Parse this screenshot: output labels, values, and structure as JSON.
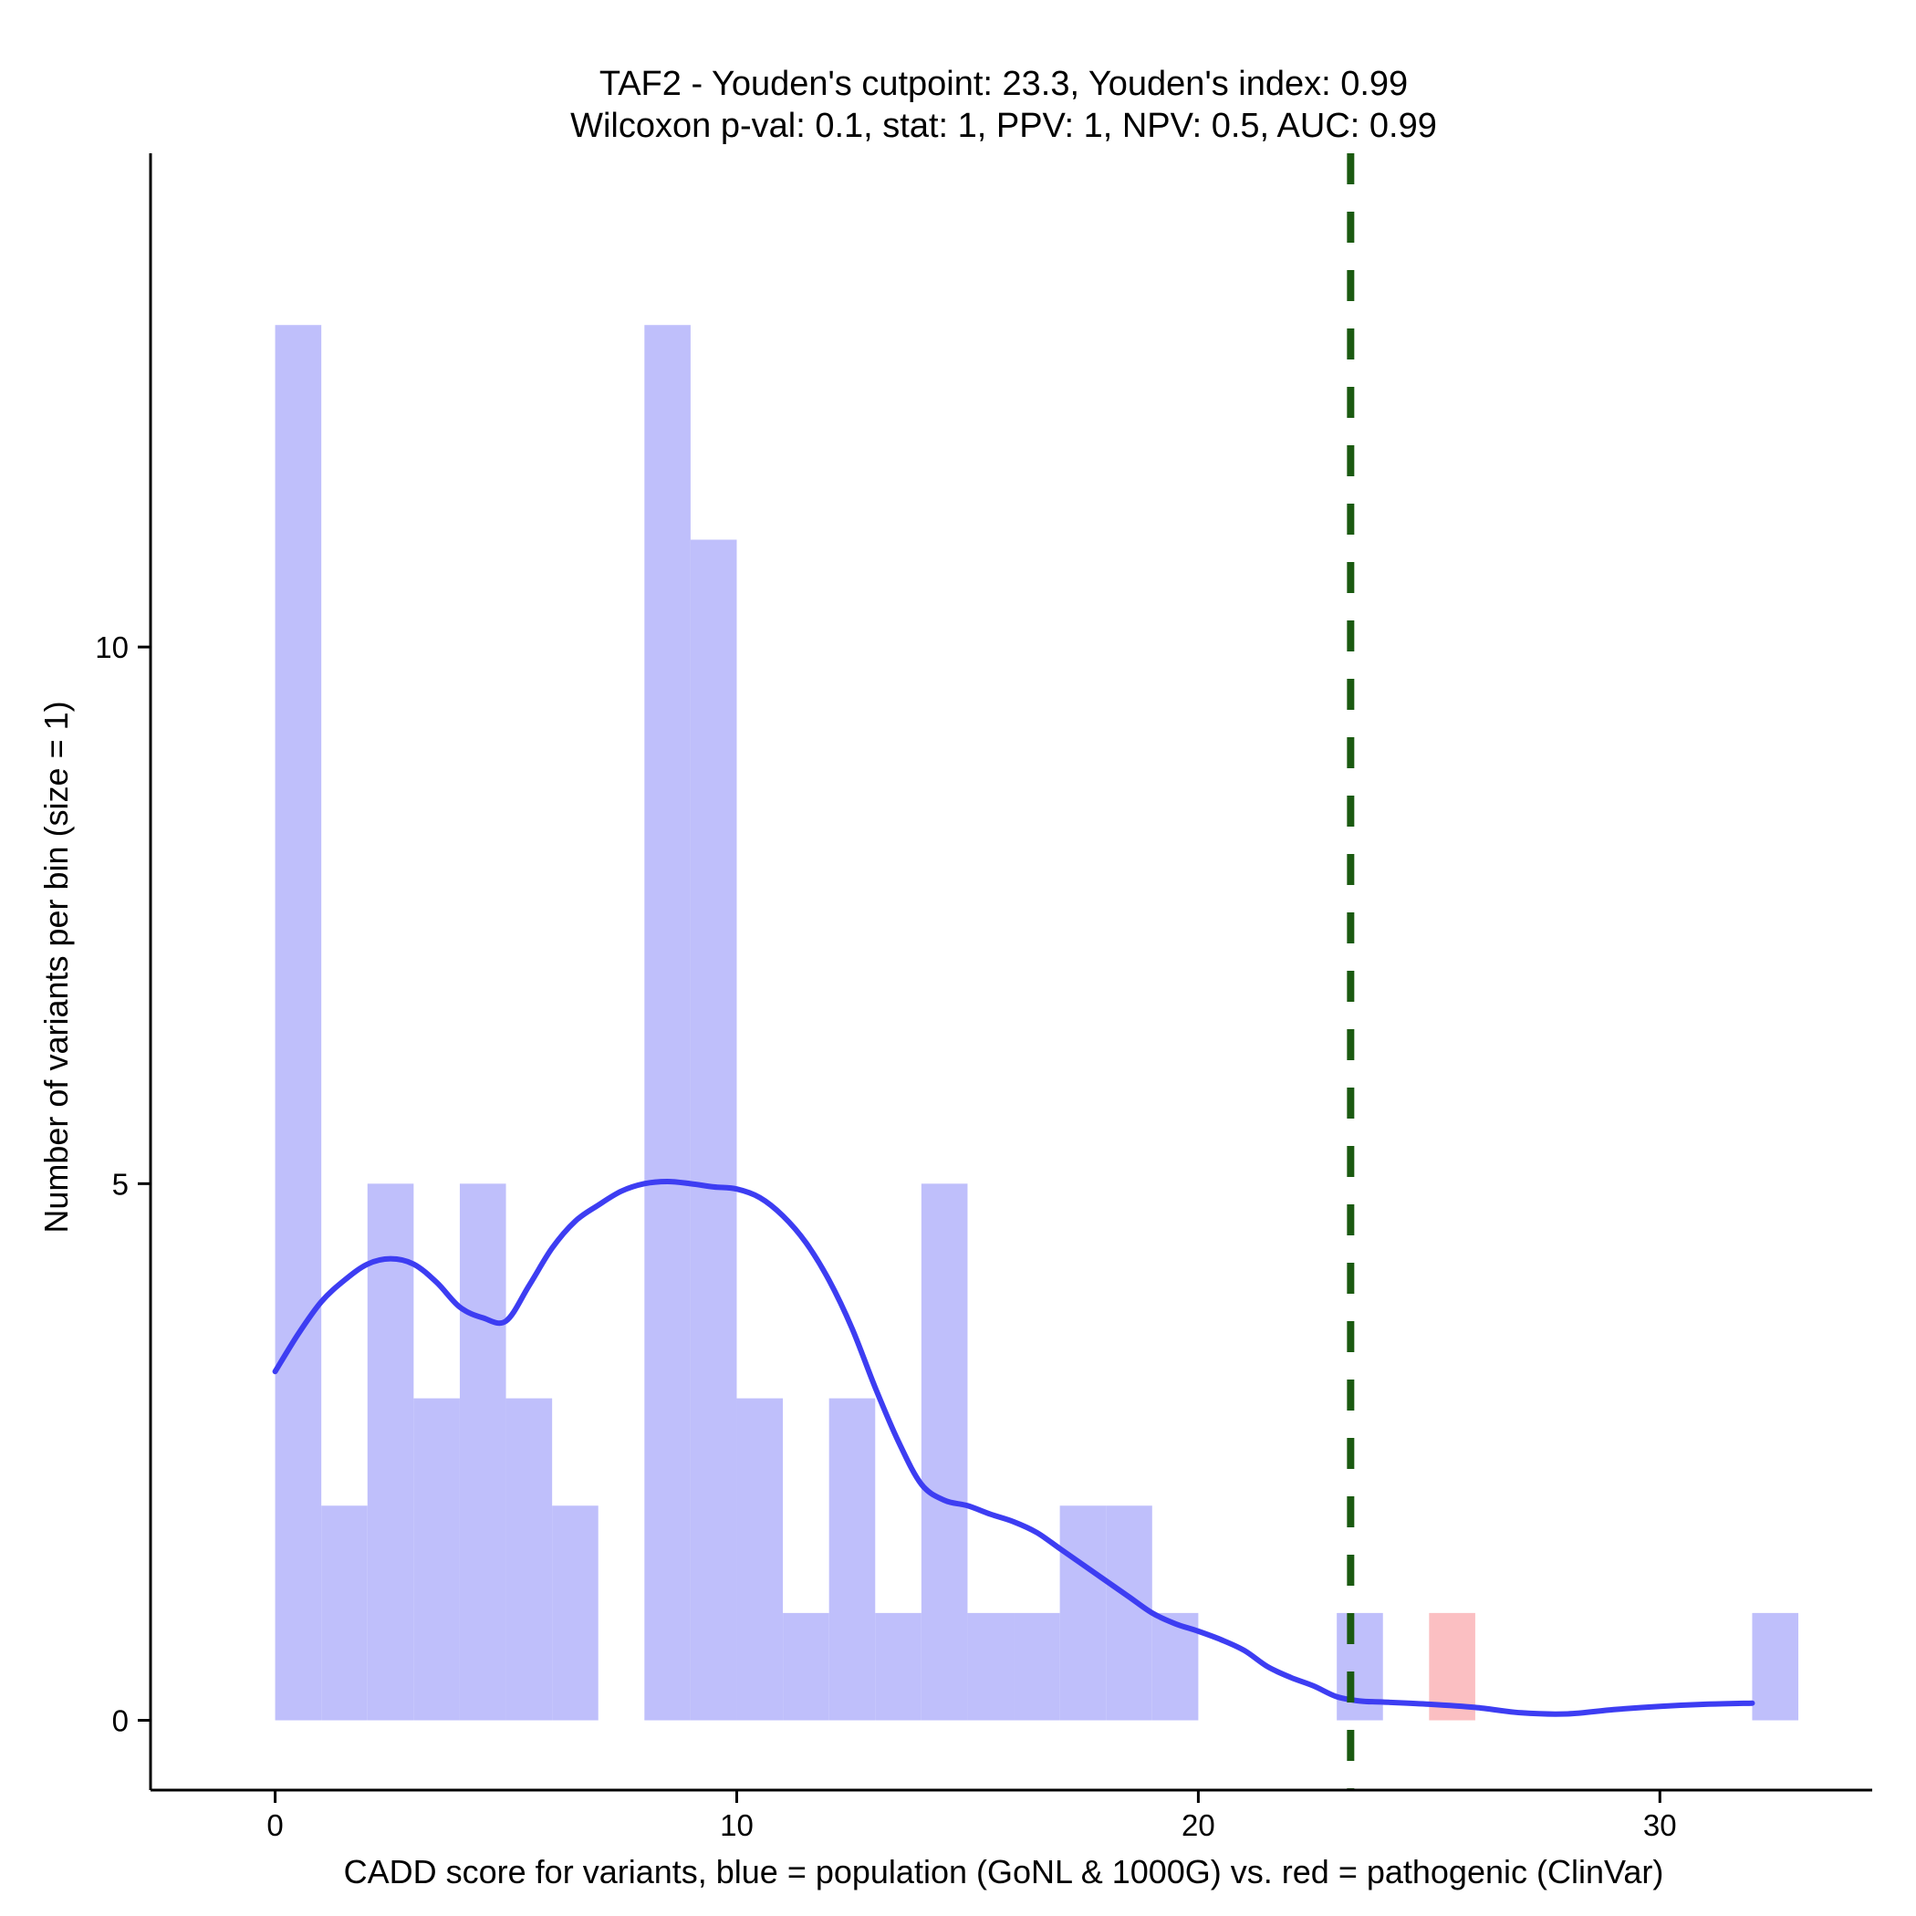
{
  "chart_data": {
    "type": "bar",
    "title": "TAF2 - Youden's cutpoint: 23.3, Youden's index: 0.99",
    "subtitle": "Wilcoxon p-val: 0.1, stat: 1, PPV: 1, NPV: 0.5, AUC: 0.99",
    "xlabel": "CADD score for variants, blue = population (GoNL & 1000G) vs. red = pathogenic (ClinVar)",
    "ylabel": "Number of variants per bin (size = 1)",
    "xlim": [
      -2.7,
      34.6
    ],
    "ylim": [
      -0.65,
      14.6
    ],
    "x_ticks": [
      0,
      10,
      20,
      30
    ],
    "y_ticks": [
      0,
      5,
      10
    ],
    "bin_width": 1,
    "grid": false,
    "series": [
      {
        "color": "#bfbffb",
        "bins": [
          {
            "x0": 0,
            "count": 13
          },
          {
            "x0": 1,
            "count": 2
          },
          {
            "x0": 2,
            "count": 5
          },
          {
            "x0": 3,
            "count": 3
          },
          {
            "x0": 4,
            "count": 5
          },
          {
            "x0": 5,
            "count": 3
          },
          {
            "x0": 6,
            "count": 2
          },
          {
            "x0": 8,
            "count": 13
          },
          {
            "x0": 9,
            "count": 11
          },
          {
            "x0": 10,
            "count": 3
          },
          {
            "x0": 11,
            "count": 1
          },
          {
            "x0": 12,
            "count": 3
          },
          {
            "x0": 13,
            "count": 1
          },
          {
            "x0": 14,
            "count": 5
          },
          {
            "x0": 15,
            "count": 1
          },
          {
            "x0": 16,
            "count": 1
          },
          {
            "x0": 17,
            "count": 2
          },
          {
            "x0": 18,
            "count": 2
          },
          {
            "x0": 19,
            "count": 1
          },
          {
            "x0": 23,
            "count": 1
          },
          {
            "x0": 32,
            "count": 1
          }
        ]
      },
      {
        "color": "#fbbfc2",
        "bins": [
          {
            "x0": 25,
            "count": 1
          }
        ]
      }
    ],
    "density_curve": {
      "color": "#3d3df2",
      "points": [
        [
          0,
          3.25
        ],
        [
          0.5,
          3.6
        ],
        [
          1,
          3.9
        ],
        [
          1.5,
          4.1
        ],
        [
          2,
          4.25
        ],
        [
          2.5,
          4.3
        ],
        [
          3,
          4.25
        ],
        [
          3.5,
          4.08
        ],
        [
          4,
          3.85
        ],
        [
          4.5,
          3.75
        ],
        [
          5,
          3.72
        ],
        [
          5.5,
          4.05
        ],
        [
          6,
          4.4
        ],
        [
          6.5,
          4.65
        ],
        [
          7,
          4.8
        ],
        [
          7.5,
          4.93
        ],
        [
          8,
          5.0
        ],
        [
          8.5,
          5.02
        ],
        [
          9,
          5.0
        ],
        [
          9.5,
          4.97
        ],
        [
          10,
          4.95
        ],
        [
          10.5,
          4.87
        ],
        [
          11,
          4.7
        ],
        [
          11.5,
          4.45
        ],
        [
          12,
          4.1
        ],
        [
          12.5,
          3.65
        ],
        [
          13,
          3.1
        ],
        [
          13.5,
          2.6
        ],
        [
          14,
          2.2
        ],
        [
          14.5,
          2.05
        ],
        [
          15,
          2.0
        ],
        [
          15.5,
          1.92
        ],
        [
          16,
          1.85
        ],
        [
          16.5,
          1.75
        ],
        [
          17,
          1.6
        ],
        [
          17.5,
          1.45
        ],
        [
          18,
          1.3
        ],
        [
          18.5,
          1.15
        ],
        [
          19,
          1.0
        ],
        [
          19.5,
          0.9
        ],
        [
          20,
          0.83
        ],
        [
          20.5,
          0.75
        ],
        [
          21,
          0.65
        ],
        [
          21.5,
          0.5
        ],
        [
          22,
          0.4
        ],
        [
          22.5,
          0.32
        ],
        [
          23,
          0.22
        ],
        [
          23.5,
          0.18
        ],
        [
          24,
          0.17
        ],
        [
          25,
          0.15
        ],
        [
          26,
          0.12
        ],
        [
          27,
          0.07
        ],
        [
          28,
          0.06
        ],
        [
          29,
          0.1
        ],
        [
          30,
          0.13
        ],
        [
          31,
          0.15
        ],
        [
          32,
          0.16
        ]
      ]
    },
    "cutpoint": {
      "x": 23.3,
      "color": "#1b5a11"
    }
  }
}
